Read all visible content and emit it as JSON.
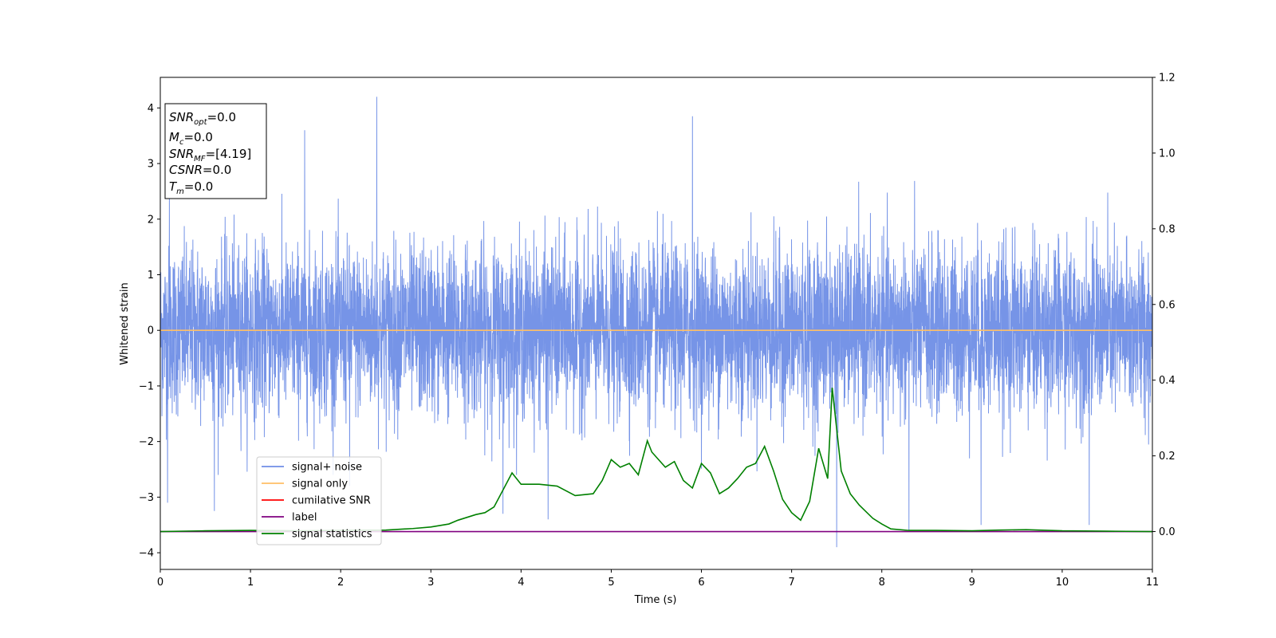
{
  "chart_data": {
    "type": "line",
    "title": "",
    "xlabel": "Time (s)",
    "ylabel": "Whitened strain",
    "xlim": [
      0,
      11
    ],
    "ylim": [
      -4.3,
      4.55
    ],
    "y2lim": [
      -0.1,
      1.2
    ],
    "x_ticks": [
      "0",
      "1",
      "2",
      "3",
      "4",
      "5",
      "6",
      "7",
      "8",
      "9",
      "10",
      "11"
    ],
    "y_ticks": [
      "−4",
      "−3",
      "−2",
      "−1",
      "0",
      "1",
      "2",
      "3",
      "4"
    ],
    "y2_ticks": [
      "0.0",
      "0.2",
      "0.4",
      "0.6",
      "0.8",
      "1.0",
      "1.2"
    ],
    "grid": false,
    "legend_placement": "lower-left",
    "legend": [
      {
        "label": "signal+ noise",
        "color": "#6f8ee6"
      },
      {
        "label": "signal only",
        "color": "#ffbf66"
      },
      {
        "label": "cumilative SNR",
        "color": "#ff0000"
      },
      {
        "label": "label",
        "color": "#800080"
      },
      {
        "label": "signal statistics",
        "color": "#008000"
      }
    ],
    "series": [
      {
        "name": "signal+ noise",
        "axis": "left",
        "color": "#6f8ee6",
        "noise_band": [
          -2.0,
          2.2
        ],
        "spikes": [
          [
            0.1,
            2.5
          ],
          [
            0.08,
            -3.1
          ],
          [
            0.6,
            -3.25
          ],
          [
            1.6,
            3.6
          ],
          [
            2.4,
            4.2
          ],
          [
            2.1,
            -2.8
          ],
          [
            5.9,
            3.85
          ],
          [
            7.5,
            -3.9
          ],
          [
            8.3,
            -3.6
          ],
          [
            10.3,
            -3.5
          ],
          [
            9.1,
            -3.5
          ],
          [
            4.3,
            -3.4
          ],
          [
            3.8,
            -3.3
          ]
        ]
      },
      {
        "name": "signal only",
        "axis": "left",
        "color": "#ffbf66",
        "x": [
          0,
          11
        ],
        "y": [
          0,
          0
        ]
      },
      {
        "name": "label",
        "axis": "right",
        "color": "#800080",
        "x": [
          0,
          11
        ],
        "y": [
          0,
          0
        ]
      },
      {
        "name": "signal statistics",
        "axis": "right",
        "color": "#008000",
        "x": [
          0,
          0.5,
          1.0,
          1.5,
          2.0,
          2.5,
          2.8,
          3.0,
          3.2,
          3.3,
          3.5,
          3.6,
          3.7,
          3.8,
          3.9,
          4.0,
          4.2,
          4.4,
          4.6,
          4.8,
          4.9,
          5.0,
          5.1,
          5.2,
          5.3,
          5.4,
          5.45,
          5.6,
          5.7,
          5.8,
          5.9,
          6.0,
          6.1,
          6.2,
          6.3,
          6.4,
          6.5,
          6.6,
          6.7,
          6.8,
          6.9,
          7.0,
          7.1,
          7.2,
          7.3,
          7.4,
          7.45,
          7.55,
          7.65,
          7.75,
          7.9,
          8.0,
          8.1,
          8.3,
          8.6,
          9.0,
          9.3,
          9.6,
          10.0,
          10.5,
          11.0
        ],
        "y": [
          0.0,
          0.002,
          0.003,
          0.002,
          0.003,
          0.004,
          0.008,
          0.012,
          0.02,
          0.03,
          0.045,
          0.05,
          0.065,
          0.11,
          0.155,
          0.125,
          0.125,
          0.12,
          0.095,
          0.1,
          0.135,
          0.19,
          0.17,
          0.18,
          0.15,
          0.24,
          0.21,
          0.17,
          0.185,
          0.135,
          0.115,
          0.18,
          0.155,
          0.1,
          0.115,
          0.14,
          0.17,
          0.18,
          0.225,
          0.16,
          0.085,
          0.05,
          0.03,
          0.08,
          0.22,
          0.14,
          0.38,
          0.16,
          0.1,
          0.07,
          0.035,
          0.02,
          0.007,
          0.003,
          0.003,
          0.002,
          0.004,
          0.005,
          0.002,
          0.001,
          0.0
        ]
      }
    ]
  },
  "info_box": {
    "snr_opt_base": "SNR",
    "snr_opt_sub": "opt",
    "snr_opt_value": "=0.0",
    "mc_base": "M",
    "mc_sub": "c",
    "mc_value": "=0.0",
    "snr_mf_base": "SNR",
    "snr_mf_sub": "MF",
    "snr_mf_value": "=[4.19]",
    "csnr_base": "CSNR",
    "csnr_value": "=0.0",
    "tm_base": "T",
    "tm_sub": "m",
    "tm_value": "=0.0"
  }
}
